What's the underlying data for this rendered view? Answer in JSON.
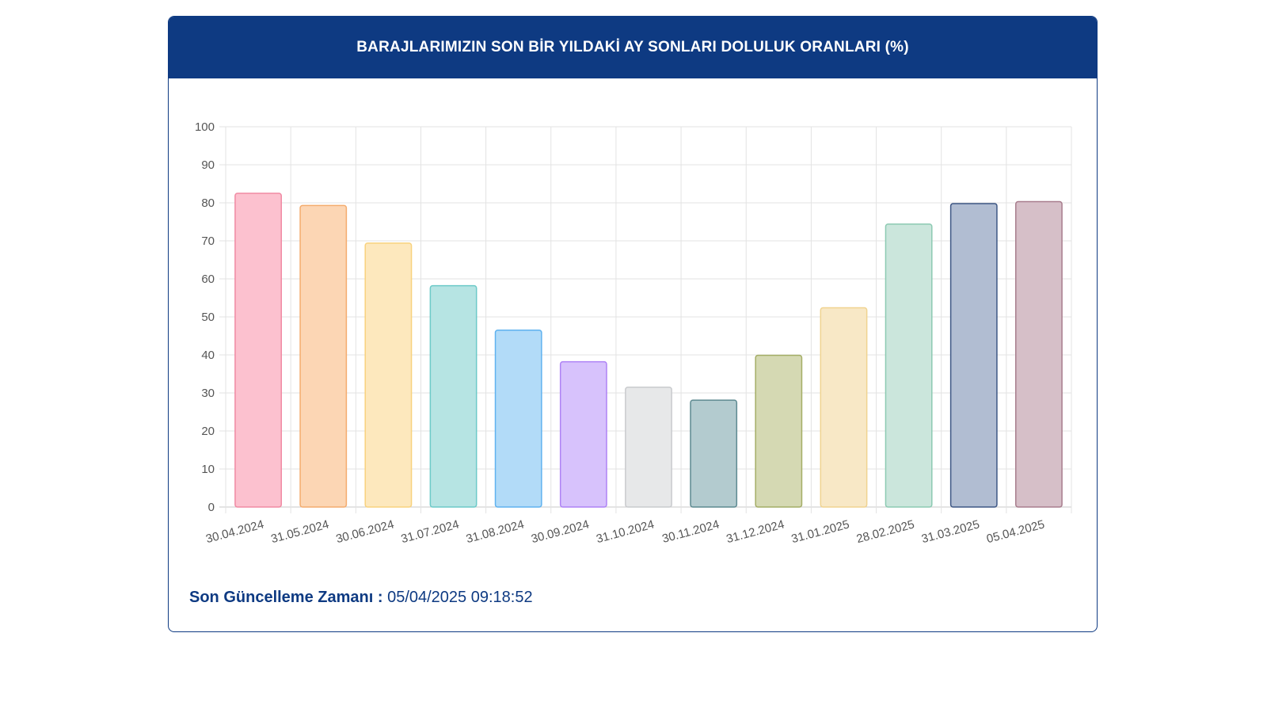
{
  "header": {
    "title": "BARAJLARIMIZIN SON BİR YILDAKİ AY SONLARI DOLULUK ORANLARI (%)"
  },
  "footer": {
    "label": "Son Güncelleme Zamanı :",
    "value": "05/04/2025 09:18:52"
  },
  "colors": {
    "brand": "#0e3a82"
  },
  "chart_data": {
    "type": "bar",
    "categories": [
      "30.04.2024",
      "31.05.2024",
      "30.06.2024",
      "31.07.2024",
      "31.08.2024",
      "30.09.2024",
      "31.10.2024",
      "30.11.2024",
      "31.12.2024",
      "31.01.2025",
      "28.02.2025",
      "31.03.2025",
      "05.04.2025"
    ],
    "values": [
      82.5,
      79.3,
      69.4,
      58.2,
      46.5,
      38.2,
      31.5,
      28.1,
      39.9,
      52.4,
      74.4,
      79.8,
      80.3
    ],
    "ylim": [
      0,
      100
    ],
    "yticks": [
      0,
      10,
      20,
      30,
      40,
      50,
      60,
      70,
      80,
      90,
      100
    ],
    "grid": true,
    "fills": [
      "#fcc1cf",
      "#fcd6b4",
      "#fde8bd",
      "#b6e4e3",
      "#b2dbf8",
      "#d7c2fc",
      "#e7e8e9",
      "#b3cbcf",
      "#d5d9b3",
      "#f8e8c6",
      "#cbe6dc",
      "#b1bdd2",
      "#d6bfc8"
    ],
    "strokes": [
      "#f08aa3",
      "#f4ac6e",
      "#f8d27e",
      "#6ccac8",
      "#5fb2ef",
      "#ae82f5",
      "#c9cbce",
      "#5d8a91",
      "#a4ad66",
      "#f0d390",
      "#8ccab2",
      "#3e5785",
      "#a87d8d"
    ]
  }
}
